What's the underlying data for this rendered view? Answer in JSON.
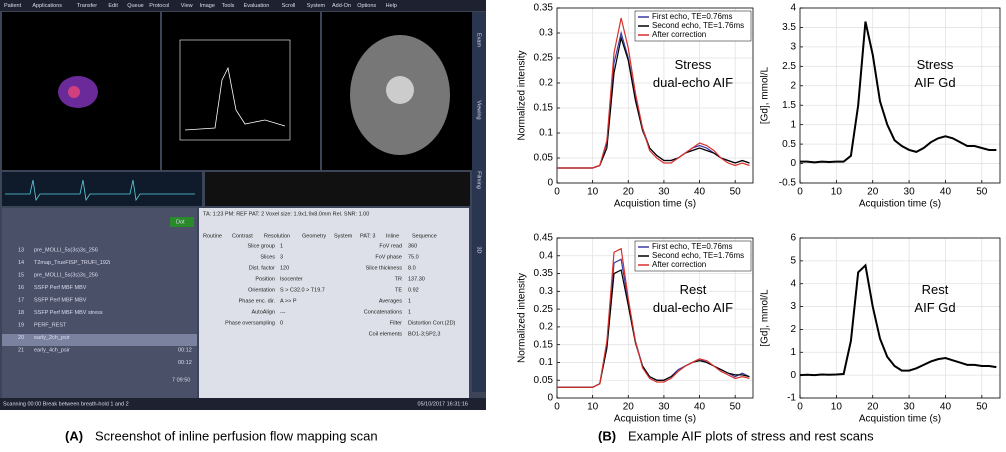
{
  "screenshot": {
    "menu": [
      "Patient",
      "Applications",
      "Transfer",
      "Edit",
      "Queue",
      "Protocol",
      "View",
      "Image",
      "Tools",
      "Evaluation",
      "Scroll",
      "System",
      "Add-On",
      "Options",
      "Help"
    ],
    "side_tabs": [
      "Exam",
      "Viewing",
      "Filming",
      "3D"
    ],
    "dot_button": "Dot",
    "info_line": "TA: 1:23   PM: REF   PAT: 2   Voxel size: 1.9x1.9x8.0mm   Rel. SNR: 1.00",
    "parameter_tabs": [
      "Routine",
      "Contrast",
      "Resolution",
      "Geometry",
      "System",
      "PAT: 3",
      "Inline",
      "Sequence"
    ],
    "protocol_rows": [
      [
        "13",
        "pre_MOLLI_5s(3s)3s_256"
      ],
      [
        "14",
        "T2map_TrueFISP_TRUFI_192i"
      ],
      [
        "15",
        "pre_MOLLI_5s(3s)3s_256"
      ],
      [
        "16",
        "SSFP Perf MBF MBV"
      ],
      [
        "17",
        "SSFP Perf MBF MBV"
      ],
      [
        "18",
        "SSFP Perf MBF MBV stress"
      ],
      [
        "19",
        "PERF_REST"
      ],
      [
        "20",
        "early_2ch_psir"
      ],
      [
        "21",
        "early_4ch_psir"
      ]
    ],
    "row_times": [
      "00:12",
      "00:12"
    ],
    "parameters_left": [
      [
        "Slice group",
        "1"
      ],
      [
        "Slices",
        "3"
      ],
      [
        "Dist. factor",
        "120"
      ],
      [
        "Position",
        "Isocenter"
      ],
      [
        "Orientation",
        "S > C32.0 > T19.7"
      ],
      [
        "Phase enc. dir.",
        "A >> P"
      ],
      [
        "AutoAlign",
        "---"
      ],
      [
        "Phase oversampling",
        "0"
      ]
    ],
    "parameters_right": [
      [
        "FoV read",
        "360"
      ],
      [
        "FoV phase",
        "75.0"
      ],
      [
        "Slice thickness",
        "8.0"
      ],
      [
        "TR",
        "137.30"
      ],
      [
        "TE",
        "0.92"
      ],
      [
        "Averages",
        "1"
      ],
      [
        "Concatenations",
        "1"
      ],
      [
        "Filter",
        "Distortion Corr.(2D)"
      ],
      [
        "Coil elements",
        "BO1-3;SP2,3"
      ]
    ],
    "clock": "7 09:50",
    "status": "Scanning 00:00 Break between breath-hold 1 and 2",
    "date": "05/10/2017 16:31:16"
  },
  "captions": [
    {
      "label": "(A)",
      "text": "Screenshot of inline perfusion flow mapping scan"
    },
    {
      "label": "(B)",
      "text": "Example AIF plots of stress and rest scans"
    }
  ],
  "chart_data": [
    {
      "type": "line",
      "annotation": [
        "Stress",
        "dual-echo AIF"
      ],
      "x_label": "Acquistion time (s)",
      "y_label": "Normalized intensity",
      "x": [
        0,
        2,
        4,
        6,
        8,
        10,
        12,
        14,
        16,
        18,
        20,
        22,
        24,
        26,
        28,
        30,
        32,
        34,
        36,
        38,
        40,
        42,
        44,
        46,
        48,
        50,
        52,
        54
      ],
      "xlim": [
        0,
        55
      ],
      "xticks": [
        0,
        10,
        20,
        30,
        40,
        50
      ],
      "ylim": [
        0,
        0.35
      ],
      "yticks": [
        0,
        0.05,
        0.1,
        0.15,
        0.2,
        0.25,
        0.3,
        0.35
      ],
      "grid": true,
      "legend": "upper right",
      "series": [
        {
          "name": "First echo, TE=0.76ms",
          "color": "#3a3aa8",
          "values": [
            0.03,
            0.03,
            0.03,
            0.03,
            0.03,
            0.03,
            0.035,
            0.08,
            0.24,
            0.3,
            0.25,
            0.17,
            0.11,
            0.07,
            0.055,
            0.045,
            0.045,
            0.05,
            0.06,
            0.07,
            0.075,
            0.07,
            0.06,
            0.05,
            0.045,
            0.04,
            0.045,
            0.04
          ]
        },
        {
          "name": "Second echo, TE=1.76ms",
          "color": "#000000",
          "values": [
            0.03,
            0.03,
            0.03,
            0.03,
            0.03,
            0.03,
            0.035,
            0.07,
            0.22,
            0.29,
            0.245,
            0.165,
            0.105,
            0.07,
            0.055,
            0.045,
            0.045,
            0.05,
            0.06,
            0.065,
            0.07,
            0.065,
            0.06,
            0.05,
            0.045,
            0.04,
            0.045,
            0.04
          ]
        },
        {
          "name": "After correction",
          "color": "#d9302c",
          "values": [
            0.03,
            0.03,
            0.03,
            0.03,
            0.03,
            0.03,
            0.035,
            0.085,
            0.26,
            0.33,
            0.27,
            0.18,
            0.11,
            0.065,
            0.05,
            0.04,
            0.04,
            0.05,
            0.06,
            0.07,
            0.08,
            0.075,
            0.065,
            0.05,
            0.04,
            0.035,
            0.04,
            0.035
          ]
        }
      ]
    },
    {
      "type": "line",
      "annotation": [
        "Stress",
        "AIF Gd"
      ],
      "x_label": "Acquistion time (s)",
      "y_label": "[Gd], mmol/L",
      "x": [
        0,
        2,
        4,
        6,
        8,
        10,
        12,
        14,
        16,
        18,
        20,
        22,
        24,
        26,
        28,
        30,
        32,
        34,
        36,
        38,
        40,
        42,
        44,
        46,
        48,
        50,
        52,
        54
      ],
      "xlim": [
        0,
        55
      ],
      "xticks": [
        0,
        10,
        20,
        30,
        40,
        50
      ],
      "ylim": [
        -0.5,
        4
      ],
      "yticks": [
        -0.5,
        0,
        0.5,
        1,
        1.5,
        2,
        2.5,
        3,
        3.5,
        4
      ],
      "grid": true,
      "series": [
        {
          "color": "#000000",
          "values": [
            0.05,
            0.05,
            0.03,
            0.05,
            0.04,
            0.05,
            0.05,
            0.2,
            1.5,
            3.65,
            2.8,
            1.6,
            1.0,
            0.6,
            0.45,
            0.35,
            0.3,
            0.4,
            0.55,
            0.65,
            0.7,
            0.65,
            0.55,
            0.45,
            0.45,
            0.4,
            0.35,
            0.35
          ]
        }
      ]
    },
    {
      "type": "line",
      "annotation": [
        "Rest",
        "dual-echo AIF"
      ],
      "x_label": "Acquistion time (s)",
      "y_label": "Normalized intensity",
      "x": [
        0,
        2,
        4,
        6,
        8,
        10,
        12,
        14,
        16,
        18,
        20,
        22,
        24,
        26,
        28,
        30,
        32,
        34,
        36,
        38,
        40,
        42,
        44,
        46,
        48,
        50,
        52,
        54
      ],
      "xlim": [
        0,
        55
      ],
      "xticks": [
        0,
        10,
        20,
        30,
        40,
        50
      ],
      "ylim": [
        0,
        0.45
      ],
      "yticks": [
        0,
        0.05,
        0.1,
        0.15,
        0.2,
        0.25,
        0.3,
        0.35,
        0.4,
        0.45
      ],
      "grid": true,
      "legend": "upper right",
      "series": [
        {
          "name": "First echo, TE=0.76ms",
          "color": "#3a3aa8",
          "values": [
            0.03,
            0.03,
            0.03,
            0.03,
            0.03,
            0.03,
            0.04,
            0.15,
            0.38,
            0.39,
            0.27,
            0.16,
            0.09,
            0.06,
            0.05,
            0.05,
            0.06,
            0.08,
            0.09,
            0.1,
            0.11,
            0.1,
            0.09,
            0.08,
            0.07,
            0.06,
            0.07,
            0.06
          ]
        },
        {
          "name": "Second echo, TE=1.76ms",
          "color": "#000000",
          "values": [
            0.03,
            0.03,
            0.03,
            0.03,
            0.03,
            0.03,
            0.04,
            0.14,
            0.35,
            0.36,
            0.26,
            0.155,
            0.09,
            0.06,
            0.05,
            0.05,
            0.06,
            0.075,
            0.09,
            0.1,
            0.105,
            0.1,
            0.09,
            0.08,
            0.07,
            0.065,
            0.065,
            0.06
          ]
        },
        {
          "name": "After correction",
          "color": "#d9302c",
          "values": [
            0.03,
            0.03,
            0.03,
            0.03,
            0.03,
            0.03,
            0.04,
            0.16,
            0.41,
            0.42,
            0.28,
            0.16,
            0.085,
            0.055,
            0.045,
            0.045,
            0.055,
            0.075,
            0.09,
            0.1,
            0.11,
            0.105,
            0.09,
            0.075,
            0.065,
            0.055,
            0.06,
            0.055
          ]
        }
      ]
    },
    {
      "type": "line",
      "annotation": [
        "Rest",
        "AIF Gd"
      ],
      "x_label": "Acquistion time (s)",
      "y_label": "[Gd], mmol/L",
      "x": [
        0,
        2,
        4,
        6,
        8,
        10,
        12,
        14,
        16,
        18,
        20,
        22,
        24,
        26,
        28,
        30,
        32,
        34,
        36,
        38,
        40,
        42,
        44,
        46,
        48,
        50,
        52,
        54
      ],
      "xlim": [
        0,
        55
      ],
      "xticks": [
        0,
        10,
        20,
        30,
        40,
        50
      ],
      "ylim": [
        -1,
        6
      ],
      "yticks": [
        -1,
        0,
        1,
        2,
        3,
        4,
        5,
        6
      ],
      "grid": true,
      "series": [
        {
          "color": "#000000",
          "values": [
            0,
            0.02,
            0,
            0.03,
            0.02,
            0.03,
            0.05,
            1.5,
            4.5,
            4.8,
            3.0,
            1.6,
            0.8,
            0.4,
            0.2,
            0.2,
            0.3,
            0.45,
            0.6,
            0.7,
            0.75,
            0.65,
            0.55,
            0.45,
            0.45,
            0.4,
            0.4,
            0.35
          ]
        }
      ]
    }
  ]
}
